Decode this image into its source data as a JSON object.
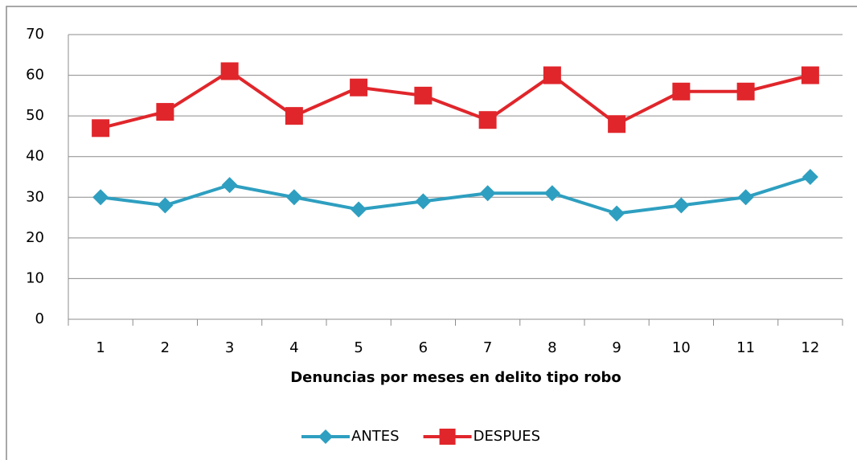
{
  "chart_data": {
    "type": "line",
    "x_label": "Denuncias por meses en delito tipo robo",
    "categories": [
      "1",
      "2",
      "3",
      "4",
      "5",
      "6",
      "7",
      "8",
      "9",
      "10",
      "11",
      "12"
    ],
    "series": [
      {
        "name": "ANTES",
        "color": "#2e9fc0",
        "marker": "diamond",
        "values": [
          30,
          28,
          33,
          30,
          27,
          29,
          31,
          31,
          26,
          28,
          30,
          35
        ]
      },
      {
        "name": "DESPUES",
        "color": "#e0262b",
        "marker": "square",
        "values": [
          47,
          51,
          61,
          50,
          57,
          55,
          49,
          60,
          48,
          56,
          56,
          60
        ]
      }
    ],
    "ylim": [
      0,
      70
    ],
    "yticks": [
      0,
      10,
      20,
      30,
      40,
      50,
      60,
      70
    ],
    "grid": true,
    "legend": "bottom"
  }
}
